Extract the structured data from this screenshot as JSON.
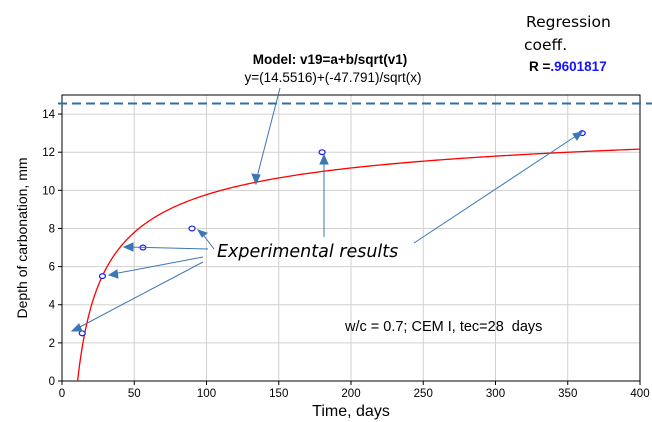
{
  "chart_data": {
    "type": "scatter",
    "xlabel": "Time, days",
    "ylabel": "Depth of carbonation, mm",
    "xlim": [
      0,
      400
    ],
    "ylim": [
      0,
      15
    ],
    "xticks": [
      0,
      50,
      100,
      150,
      200,
      250,
      300,
      350,
      400
    ],
    "yticks": [
      0,
      2,
      4,
      6,
      8,
      10,
      12,
      14
    ],
    "grid": true,
    "series": [
      {
        "kind": "points",
        "color": "#1a1aff",
        "x": [
          14,
          28,
          56,
          90,
          180,
          360
        ],
        "y": [
          2.5,
          5.5,
          7.0,
          8.0,
          12.0,
          13.0
        ]
      },
      {
        "kind": "fit-curve",
        "color": "#ff0000",
        "model": {
          "a": 14.5516,
          "b": -47.791
        }
      },
      {
        "kind": "asymptote",
        "color": "#2f6fa6",
        "y": 14.5516
      }
    ],
    "annotations": {
      "model_line1": "Model: v19=a+b/sqrt(v1)",
      "model_line2": "y=(14.5516)+(-47.791)/sqrt(x)",
      "regression_line1": "Regression",
      "regression_line2": "coeff.",
      "r_prefix": "R =",
      "r_value": ".9601817",
      "experimental": "Experimental results",
      "conditions": "w/c = 0.7; CEM I, tec=28",
      "conditions_unit": "days"
    }
  }
}
